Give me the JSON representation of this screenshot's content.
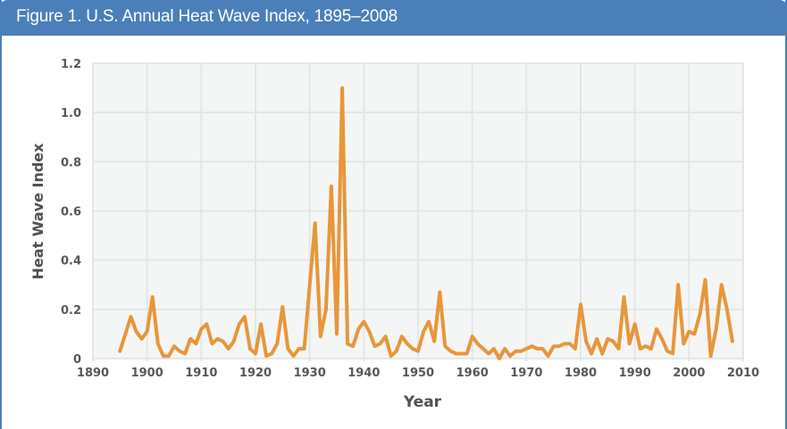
{
  "header": {
    "title": "Figure 1. U.S. Annual Heat Wave Index, 1895–2008"
  },
  "colors": {
    "header_bg": "#4a7fba",
    "plot_bg": "#f4f6f6",
    "grid": "#e3e6e7",
    "line": "#e8963a",
    "tick_text": "#55585a"
  },
  "chart_data": {
    "type": "line",
    "title": "Figure 1. U.S. Annual Heat Wave Index, 1895–2008",
    "xlabel": "Year",
    "ylabel": "Heat Wave Index",
    "xlim": [
      1890,
      2010
    ],
    "ylim": [
      0,
      1.2
    ],
    "grid": true,
    "x_ticks": [
      1890,
      1900,
      1910,
      1920,
      1930,
      1940,
      1950,
      1960,
      1970,
      1980,
      1990,
      2000,
      2010
    ],
    "x_tick_labels": [
      "1890",
      "1900",
      "1910",
      "1920",
      "1930",
      "1940",
      "1950",
      "1960",
      "1970",
      "1980",
      "1990",
      "2000",
      "2010"
    ],
    "y_ticks": [
      0,
      0.2,
      0.4,
      0.6,
      0.8,
      1.0,
      1.2
    ],
    "y_tick_labels": [
      "0",
      "0.2",
      "0.4",
      "0.6",
      "0.8",
      "1.0",
      "1.2"
    ],
    "series": [
      {
        "name": "Heat Wave Index",
        "x_start": 1895,
        "x_end": 2008,
        "values": [
          0.03,
          0.1,
          0.17,
          0.11,
          0.08,
          0.11,
          0.25,
          0.06,
          0.01,
          0.01,
          0.05,
          0.03,
          0.02,
          0.08,
          0.06,
          0.12,
          0.14,
          0.06,
          0.08,
          0.07,
          0.04,
          0.07,
          0.14,
          0.17,
          0.04,
          0.02,
          0.14,
          0.01,
          0.02,
          0.06,
          0.21,
          0.04,
          0.01,
          0.04,
          0.04,
          0.3,
          0.55,
          0.09,
          0.2,
          0.7,
          0.1,
          1.1,
          0.06,
          0.05,
          0.12,
          0.15,
          0.11,
          0.05,
          0.06,
          0.09,
          0.01,
          0.03,
          0.09,
          0.06,
          0.04,
          0.03,
          0.11,
          0.15,
          0.07,
          0.27,
          0.05,
          0.03,
          0.02,
          0.02,
          0.02,
          0.09,
          0.06,
          0.04,
          0.02,
          0.04,
          0.0,
          0.04,
          0.01,
          0.03,
          0.03,
          0.04,
          0.05,
          0.04,
          0.04,
          0.01,
          0.05,
          0.05,
          0.06,
          0.06,
          0.04,
          0.22,
          0.07,
          0.02,
          0.08,
          0.02,
          0.08,
          0.07,
          0.04,
          0.25,
          0.06,
          0.14,
          0.04,
          0.05,
          0.04,
          0.12,
          0.08,
          0.03,
          0.02,
          0.3,
          0.06,
          0.11,
          0.1,
          0.18,
          0.32,
          0.01,
          0.12,
          0.3,
          0.2,
          0.07
        ]
      }
    ]
  }
}
